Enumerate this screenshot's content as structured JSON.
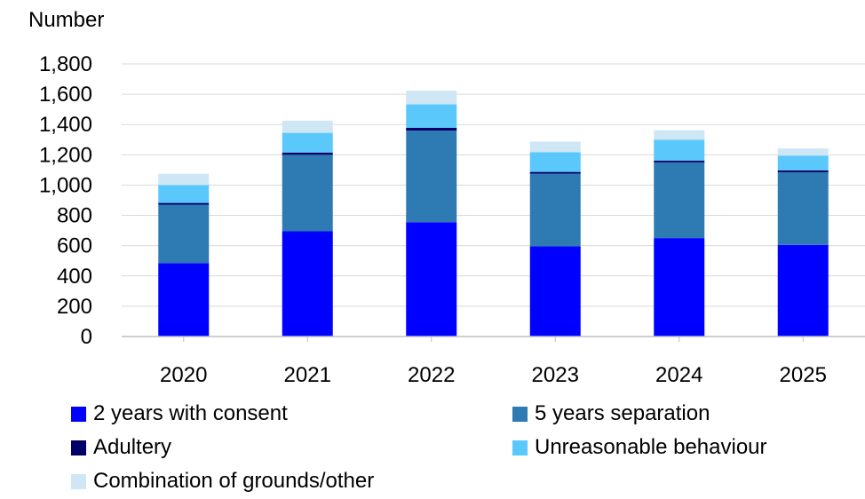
{
  "chart_data": {
    "type": "bar",
    "stacked": true,
    "ylabel": "Number",
    "xlabel": "",
    "title": "",
    "ylim": [
      0,
      1800
    ],
    "yticks": [
      0,
      200,
      400,
      600,
      800,
      1000,
      1200,
      1400,
      1600,
      1800
    ],
    "ytick_labels": [
      "0",
      "200",
      "400",
      "600",
      "800",
      "1,000",
      "1,200",
      "1,400",
      "1,600",
      "1,800"
    ],
    "categories": [
      "2020",
      "2021",
      "2022",
      "2023",
      "2024",
      "2025"
    ],
    "grid": true,
    "legend_position": "bottom",
    "series": [
      {
        "name": "2 years with consent",
        "color": "#0000ff",
        "values": [
          485,
          695,
          755,
          595,
          650,
          605
        ]
      },
      {
        "name": "5 years separation",
        "color": "#2e7bb4",
        "values": [
          385,
          505,
          605,
          480,
          500,
          480
        ]
      },
      {
        "name": "Adultery",
        "color": "#000066",
        "values": [
          12,
          15,
          18,
          12,
          12,
          12
        ]
      },
      {
        "name": "Unreasonable behaviour",
        "color": "#5bc8fb",
        "values": [
          118,
          130,
          155,
          130,
          138,
          98
        ]
      },
      {
        "name": "Combination of grounds/other",
        "color": "#cfe6f5",
        "values": [
          75,
          80,
          90,
          70,
          62,
          47
        ]
      }
    ]
  }
}
